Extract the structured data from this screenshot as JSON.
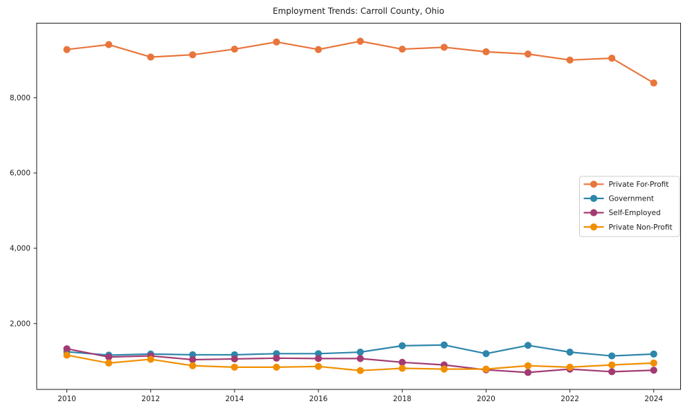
{
  "figure": {
    "background_color": "#ffffff",
    "axis_color": "#1a1a1a",
    "text_color": "#1a1a1a"
  },
  "chart_data": {
    "type": "line",
    "title": "Employment Trends: Carroll County, Ohio",
    "xlabel": "",
    "ylabel": "",
    "grid": false,
    "legend_position": "center right",
    "marker": "circle",
    "x": [
      2010,
      2011,
      2012,
      2013,
      2014,
      2015,
      2016,
      2017,
      2018,
      2019,
      2020,
      2021,
      2022,
      2023,
      2024
    ],
    "series": [
      {
        "name": "Private For-Profit",
        "color": "#E8753C",
        "values": [
          9280,
          9410,
          9080,
          9140,
          9290,
          9480,
          9280,
          9500,
          9290,
          9340,
          9220,
          9160,
          9000,
          9050,
          8390
        ]
      },
      {
        "name": "Government",
        "color": "#2E86AB",
        "values": [
          1250,
          1160,
          1190,
          1170,
          1170,
          1200,
          1200,
          1240,
          1410,
          1430,
          1200,
          1420,
          1240,
          1140,
          1190
        ]
      },
      {
        "name": "Self-Employed",
        "color": "#A23B72",
        "values": [
          1330,
          1110,
          1140,
          1040,
          1060,
          1080,
          1070,
          1070,
          970,
          900,
          770,
          700,
          790,
          720,
          760
        ]
      },
      {
        "name": "Private Non-Profit",
        "color": "#F18F01",
        "values": [
          1160,
          950,
          1050,
          880,
          840,
          840,
          860,
          750,
          810,
          790,
          790,
          880,
          840,
          900,
          950
        ]
      }
    ],
    "xlim": [
      2009.28,
      2024.64
    ],
    "ylim": [
      250,
      9980
    ],
    "xticks": [
      2010,
      2012,
      2014,
      2016,
      2018,
      2020,
      2022,
      2024
    ],
    "xtick_labels": [
      "2010",
      "2012",
      "2014",
      "2016",
      "2018",
      "2020",
      "2022",
      "2024"
    ],
    "yticks": [
      2000,
      4000,
      6000,
      8000
    ],
    "ytick_labels": [
      "2,000",
      "4,000",
      "6,000",
      "8,000"
    ],
    "legend": {
      "border_color": "#cccccc",
      "background_color": "#ffffff"
    }
  }
}
